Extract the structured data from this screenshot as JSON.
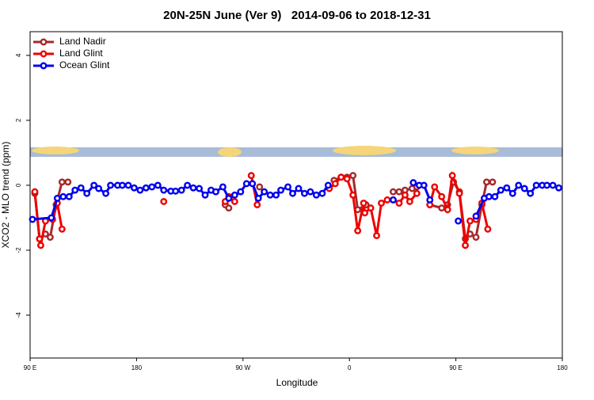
{
  "chart_data": {
    "type": "line",
    "title": "20N-25N June (Ver 9)   2014-09-06 to 2018-12-31",
    "x_label": "Longitude",
    "y_label": "XCO2 - MLO trend (ppm)",
    "xlim": [
      90,
      540
    ],
    "ylim": [
      -5.32,
      4.73
    ],
    "xticks": [
      {
        "value": 90,
        "label": "90 E"
      },
      180,
      {
        "value": 270,
        "label": "90 W"
      },
      {
        "value": 360,
        "label": "0"
      },
      {
        "value": 450,
        "label": "90 E"
      },
      {
        "value": 540,
        "label": "180"
      }
    ],
    "yticks": [
      -4,
      -2,
      0,
      2,
      4
    ],
    "legend": "top-left",
    "series": [
      {
        "name": "Land Nadir",
        "color": "#a52a2a",
        "x": [
          94,
          98,
          103,
          107,
          112,
          117,
          122,
          null,
          255,
          258,
          null,
          284,
          null,
          347,
          353,
          358,
          363,
          367,
          374,
          null,
          397,
          402,
          407,
          413,
          417,
          null,
          428,
          438,
          443,
          448,
          453,
          458,
          462,
          467,
          472,
          476,
          481
        ],
        "values": [
          -0.25,
          -1.65,
          -1.5,
          -1.6,
          -0.6,
          0.1,
          0.1,
          null,
          -0.6,
          -0.7,
          null,
          -0.05,
          null,
          0.15,
          0.25,
          0.25,
          0.3,
          -0.75,
          -0.6,
          null,
          -0.2,
          -0.2,
          -0.15,
          -0.1,
          -0.05,
          null,
          -0.6,
          -0.7,
          -0.6,
          0.1,
          -0.2,
          -1.65,
          -1.5,
          -1.6,
          -0.6,
          0.1,
          0.1
        ]
      },
      {
        "name": "Land Glint",
        "color": "#ee0000",
        "x": [
          94,
          98,
          99,
          103,
          109,
          113,
          117,
          null,
          203,
          null,
          255,
          258,
          263,
          null,
          277,
          282,
          null,
          343,
          348,
          353,
          358,
          363,
          367,
          372,
          373,
          378,
          383,
          387,
          392,
          397,
          402,
          407,
          411,
          417,
          null,
          428,
          432,
          438,
          443,
          447,
          453,
          458,
          462,
          467,
          472,
          477
        ],
        "values": [
          -0.2,
          -1.65,
          -1.85,
          -1.1,
          -1.05,
          -0.55,
          -1.35,
          null,
          -0.5,
          null,
          -0.5,
          -0.35,
          -0.5,
          null,
          0.3,
          -0.6,
          null,
          -0.1,
          0.05,
          0.25,
          0.2,
          -0.3,
          -1.4,
          -0.55,
          -0.85,
          -0.7,
          -1.55,
          -0.55,
          -0.45,
          -0.45,
          -0.55,
          -0.3,
          -0.5,
          -0.25,
          null,
          -0.6,
          -0.05,
          -0.35,
          -0.75,
          0.3,
          -0.25,
          -1.85,
          -1.1,
          -1.05,
          -0.55,
          -1.35
        ]
      },
      {
        "name": "Ocean Glint",
        "color": "#0000ee",
        "x": [
          92,
          108,
          113,
          118,
          123,
          128,
          133,
          138,
          144,
          148,
          154,
          158,
          164,
          168,
          173,
          178,
          183,
          188,
          193,
          198,
          203,
          209,
          213,
          218,
          223,
          228,
          233,
          238,
          243,
          247,
          253,
          258,
          263,
          268,
          273,
          278,
          283,
          288,
          293,
          298,
          302,
          308,
          312,
          317,
          322,
          327,
          332,
          337,
          342,
          null,
          397,
          null,
          414,
          419,
          423,
          428,
          null,
          452,
          null,
          467,
          474,
          478,
          483,
          488,
          493,
          498,
          503,
          508,
          513,
          518,
          523,
          527,
          532,
          537
        ],
        "values": [
          -1.05,
          -1.0,
          -0.4,
          -0.35,
          -0.35,
          -0.15,
          -0.08,
          -0.25,
          0.0,
          -0.1,
          -0.25,
          0.0,
          0.0,
          0.0,
          0.0,
          -0.08,
          -0.15,
          -0.08,
          -0.05,
          0.0,
          -0.15,
          -0.18,
          -0.18,
          -0.15,
          0.0,
          -0.08,
          -0.1,
          -0.3,
          -0.15,
          -0.2,
          -0.05,
          -0.4,
          -0.3,
          -0.2,
          0.05,
          0.05,
          -0.4,
          -0.2,
          -0.3,
          -0.3,
          -0.15,
          -0.05,
          -0.25,
          -0.1,
          -0.25,
          -0.2,
          -0.3,
          -0.25,
          0.0,
          null,
          -0.45,
          null,
          0.08,
          0.0,
          0.0,
          -0.45,
          null,
          -1.1,
          null,
          -0.95,
          -0.4,
          -0.35,
          -0.35,
          -0.15,
          -0.08,
          -0.25,
          0.0,
          -0.1,
          -0.25,
          0.0,
          0.0,
          0.0,
          0.0,
          -0.08
        ]
      }
    ]
  }
}
